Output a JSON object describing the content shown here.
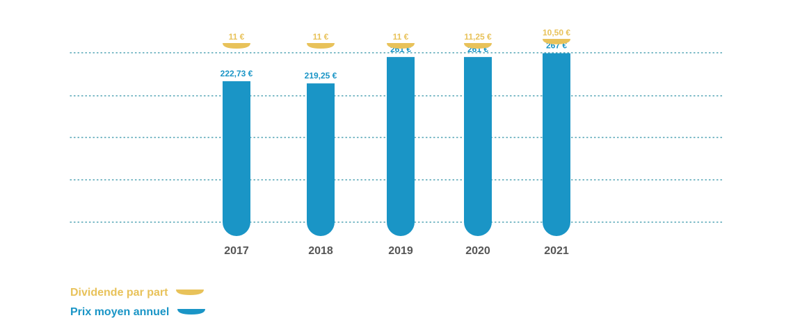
{
  "colors": {
    "dividend": "#e8c25a",
    "price": "#1a95c6",
    "grid": "#2a8fa3",
    "year_label": "#555555",
    "background": "#ffffff"
  },
  "legend": {
    "dividend_label": "Dividende par part",
    "price_label": "Prix moyen annuel"
  },
  "chart_data": {
    "type": "bar",
    "categories": [
      "2017",
      "2018",
      "2019",
      "2020",
      "2021"
    ],
    "series": [
      {
        "name": "Prix moyen annuel",
        "values": [
          222.73,
          219.25,
          261,
          261,
          267
        ],
        "labels": [
          "222,73 €",
          "219,25 €",
          "261 €",
          "261 €",
          "267 €"
        ]
      },
      {
        "name": "Dividende par part",
        "values": [
          11,
          11,
          11,
          11.25,
          10.5
        ],
        "labels": [
          "11 €",
          "11 €",
          "11 €",
          "11,25 €",
          "10,50 €"
        ]
      }
    ],
    "ylim": [
      0,
      300
    ],
    "grid": true,
    "legend_position": "bottom-left"
  }
}
